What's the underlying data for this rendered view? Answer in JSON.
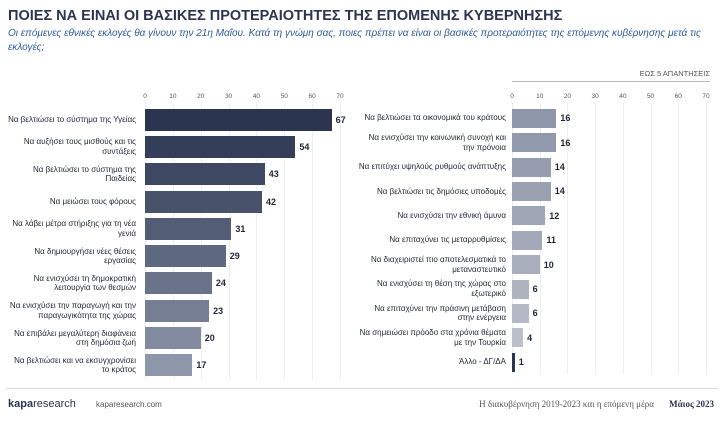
{
  "header": {
    "title": "ΠΟΙΕΣ ΝΑ ΕΙΝΑΙ ΟΙ ΒΑΣΙΚΕΣ ΠΡΟΤΕΡΑΙΟΤΗΤΕΣ ΤΗΣ ΕΠΟΜΕΝΗΣ ΚΥΒΕΡΝΗΣΗΣ",
    "subtitle": "Οι επόμενες εθνικές εκλογές θα γίνουν την 21η Μαΐου. Κατά τη γνώμη σας, ποιες πρέπει να είναι οι βασικές προτεραιότητες της επόμενης κυβέρνησης μετά τις εκλογές;",
    "note": "ΕΩΣ 5 ΑΠΑΝΤΗΣΕΙΣ"
  },
  "chart_data": [
    {
      "type": "bar",
      "orientation": "horizontal",
      "categories": [
        "Να βελτιώσει το σύστημα της Υγείας",
        "Να αυξήσει τους μισθούς και τις συντάξεις",
        "Να βελτιώσει το σύστημα της Παιδείας",
        "Να μειώσει τους φόρους",
        "Να λάβει μέτρα στήριξης για τη νέα γενιά",
        "Να δημιουργήσει νέες θέσεις εργασίας",
        "Να ενισχύσει τη δημοκρατική λειτουργία των θεσμών",
        "Να ενισχύσει την παραγωγή και την παραγωγικότητα της χώρας",
        "Να επιβάλει μεγαλύτερη διαφάνεια στη δημόσια ζωή",
        "Να βελτιώσει και να εκσυγχρονίσει το κράτος"
      ],
      "values": [
        67,
        54,
        43,
        42,
        31,
        29,
        24,
        23,
        20,
        17
      ],
      "colors": [
        "#2b3550",
        "#343e59",
        "#3e4862",
        "#48526b",
        "#535d75",
        "#5e687f",
        "#6a7389",
        "#757e93",
        "#818a9e",
        "#8e96a9"
      ],
      "xlim": [
        0,
        70
      ],
      "xticks": [
        0,
        10,
        20,
        30,
        40,
        50,
        60,
        70
      ],
      "grid": true
    },
    {
      "type": "bar",
      "orientation": "horizontal",
      "categories": [
        "Να βελτιώσει τα οικονομικά του κράτους",
        "Να ενισχύσει την κοινωνική συνοχή και την πρόνοια",
        "Να επιτύχει υψηλούς ρυθμούς ανάπτυξης",
        "Να βελτιώσει τις δημόσιες υποδομές",
        "Να ενισχύσει την εθνική άμυνα",
        "Να επιταχύνει τις μεταρρυθμίσεις",
        "Να διαχειριστεί πιο αποτελεσματικά το μεταναστευτικό",
        "Να ενισχύσει τη θέση της χώρας στο εξωτερικό",
        "Να επιταχύνει την πράσινη μετάβαση στην ενέργεια",
        "Να σημειώσει πρόοδο στα χρόνια θέματα με την Τουρκία",
        "Άλλο - ΔΓ/ΔΑ"
      ],
      "values": [
        16,
        16,
        14,
        14,
        12,
        11,
        10,
        6,
        6,
        4,
        1
      ],
      "colors": [
        "#8e96a9",
        "#9299ac",
        "#969dae",
        "#9aa1b1",
        "#9ea5b4",
        "#a3a9b8",
        "#a8aebc",
        "#aeb3c0",
        "#b4b9c5",
        "#babfca",
        "#2b3550"
      ],
      "xlim": [
        0,
        70
      ],
      "xticks": [
        0,
        10,
        20,
        30,
        40,
        50,
        60,
        70
      ],
      "grid": true
    }
  ],
  "footer": {
    "brand": "kapa",
    "brand_suffix": "research",
    "site": "kaparesearch.com",
    "project": "Η διακυβέρνηση 2019-2023 και η επόμενη μέρα",
    "date": "Μάιος 2023"
  }
}
